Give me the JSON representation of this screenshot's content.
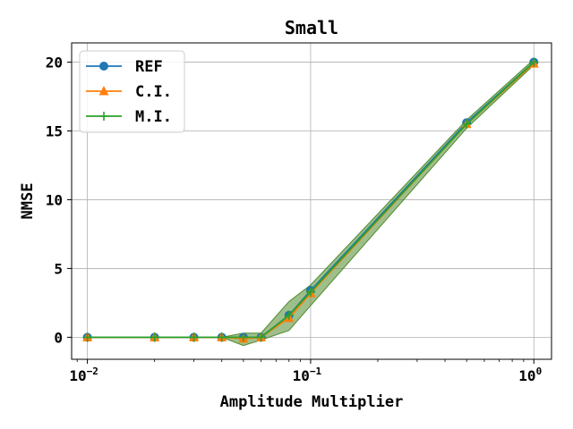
{
  "chart_data": {
    "type": "line",
    "title": "Small",
    "xlabel": "Amplitude Multiplier",
    "ylabel": "NMSE",
    "xscale": "log",
    "xlim": [
      0.0085,
      1.2
    ],
    "ylim": [
      -1.6,
      21.4
    ],
    "xticks": [
      {
        "value": 0.01,
        "base": "10",
        "exp": "−2"
      },
      {
        "value": 0.1,
        "base": "10",
        "exp": "−1"
      },
      {
        "value": 1,
        "base": "10",
        "exp": "0"
      }
    ],
    "yticks": [
      {
        "value": 0,
        "label": "0"
      },
      {
        "value": 5,
        "label": "5"
      },
      {
        "value": 10,
        "label": "10"
      },
      {
        "value": 15,
        "label": "15"
      },
      {
        "value": 20,
        "label": "20"
      }
    ],
    "grid": true,
    "legend_position": "top-left",
    "x": [
      0.01,
      0.02,
      0.03,
      0.04,
      0.05,
      0.06,
      0.08,
      0.1,
      0.5,
      1.0
    ],
    "series": [
      {
        "name": "REF",
        "marker": "circle",
        "color": "#1f77b4",
        "values": [
          0.0,
          0.0,
          0.0,
          0.0,
          0.0,
          0.0,
          1.6,
          3.4,
          15.6,
          20.0
        ]
      },
      {
        "name": "C.I.",
        "marker": "triangle",
        "color": "#ff7f0e",
        "values": [
          0.0,
          0.0,
          0.0,
          0.0,
          -0.1,
          0.0,
          1.4,
          3.2,
          15.5,
          19.9
        ]
      },
      {
        "name": "M.I.",
        "marker": "plus",
        "color": "#2ca02c",
        "values": [
          0.0,
          0.0,
          0.0,
          0.0,
          0.0,
          0.0,
          1.6,
          3.3,
          15.5,
          20.0
        ]
      }
    ],
    "band": {
      "color": "#4f8a2c",
      "upper": [
        0.0,
        0.0,
        0.0,
        0.0,
        0.3,
        0.3,
        2.6,
        3.8,
        15.8,
        20.2
      ],
      "lower": [
        0.0,
        0.0,
        0.0,
        0.0,
        -0.6,
        -0.2,
        0.5,
        2.3,
        15.2,
        19.8
      ]
    }
  }
}
